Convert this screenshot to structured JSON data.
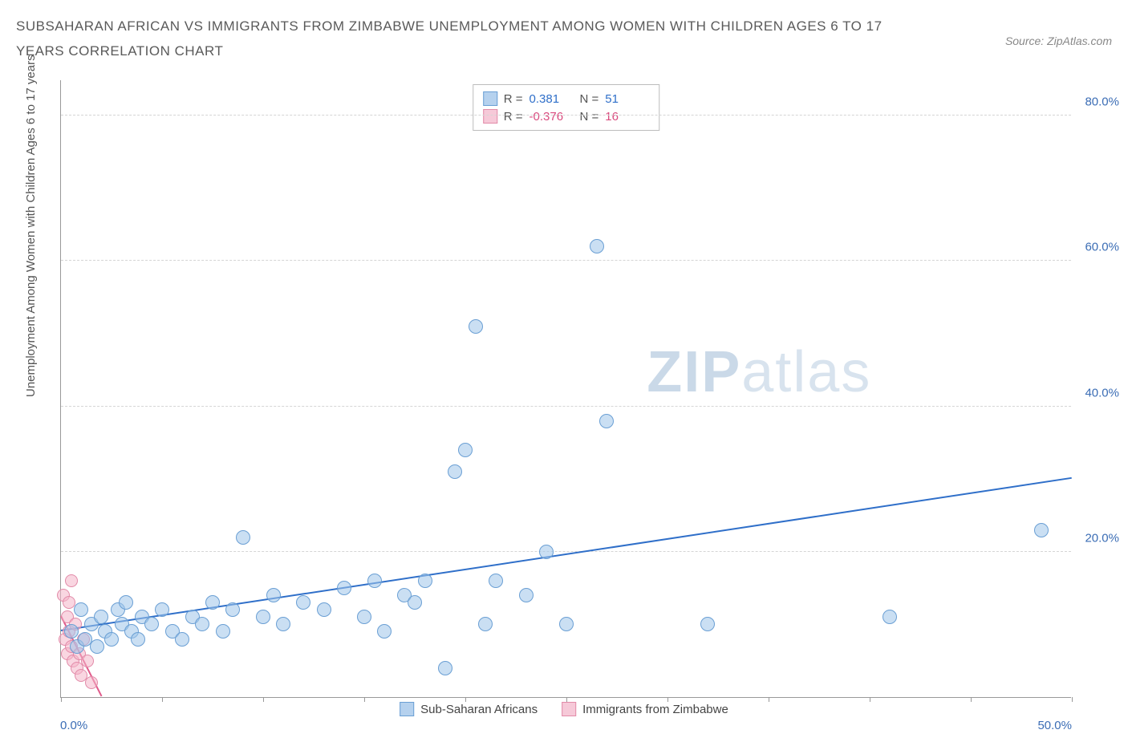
{
  "header": {
    "title": "SUBSAHARAN AFRICAN VS IMMIGRANTS FROM ZIMBABWE UNEMPLOYMENT AMONG WOMEN WITH CHILDREN AGES 6 TO 17 YEARS CORRELATION CHART",
    "source": "Source: ZipAtlas.com"
  },
  "chart": {
    "type": "scatter",
    "y_axis_label": "Unemployment Among Women with Children Ages 6 to 17 years",
    "x_range": [
      0,
      50
    ],
    "y_range": [
      0,
      85
    ],
    "x_ticks_percent": [
      0,
      5,
      10,
      15,
      20,
      25,
      30,
      35,
      40,
      45,
      50
    ],
    "x_tick_labels": {
      "left": "0.0%",
      "right": "50.0%"
    },
    "y_gridlines": [
      20,
      40,
      60,
      80
    ],
    "y_tick_labels": [
      "20.0%",
      "40.0%",
      "60.0%",
      "80.0%"
    ],
    "background_color": "#ffffff",
    "grid_color": "#d5d5d5",
    "axis_color": "#999999",
    "watermark": {
      "bold": "ZIP",
      "light": "atlas",
      "color_bold": "#cad9e8",
      "color_light": "#d8e3ee"
    },
    "series": {
      "blue": {
        "label": "Sub-Saharan Africans",
        "color_fill": "#b5d1ee",
        "color_stroke": "#6a9fd4",
        "trend_color": "#2f6fc9",
        "R": "0.381",
        "N": "51",
        "trend": {
          "x1": 0,
          "y1": 9,
          "x2": 50,
          "y2": 30
        },
        "points": [
          [
            0.5,
            9
          ],
          [
            0.8,
            7
          ],
          [
            1.0,
            12
          ],
          [
            1.2,
            8
          ],
          [
            1.5,
            10
          ],
          [
            1.8,
            7
          ],
          [
            2.0,
            11
          ],
          [
            2.2,
            9
          ],
          [
            2.5,
            8
          ],
          [
            2.8,
            12
          ],
          [
            3.0,
            10
          ],
          [
            3.2,
            13
          ],
          [
            3.5,
            9
          ],
          [
            3.8,
            8
          ],
          [
            4.0,
            11
          ],
          [
            4.5,
            10
          ],
          [
            5.0,
            12
          ],
          [
            5.5,
            9
          ],
          [
            6.0,
            8
          ],
          [
            6.5,
            11
          ],
          [
            7.0,
            10
          ],
          [
            7.5,
            13
          ],
          [
            8.0,
            9
          ],
          [
            8.5,
            12
          ],
          [
            9.0,
            22
          ],
          [
            10.0,
            11
          ],
          [
            10.5,
            14
          ],
          [
            11.0,
            10
          ],
          [
            12.0,
            13
          ],
          [
            13.0,
            12
          ],
          [
            14.0,
            15
          ],
          [
            15.0,
            11
          ],
          [
            15.5,
            16
          ],
          [
            16.0,
            9
          ],
          [
            17.0,
            14
          ],
          [
            17.5,
            13
          ],
          [
            18.0,
            16
          ],
          [
            19.0,
            4
          ],
          [
            19.5,
            31
          ],
          [
            20.0,
            34
          ],
          [
            20.5,
            51
          ],
          [
            21.0,
            10
          ],
          [
            21.5,
            16
          ],
          [
            23.0,
            14
          ],
          [
            24.0,
            20
          ],
          [
            25.0,
            10
          ],
          [
            26.5,
            62
          ],
          [
            27.0,
            38
          ],
          [
            32.0,
            10
          ],
          [
            41.0,
            11
          ],
          [
            48.5,
            23
          ]
        ]
      },
      "pink": {
        "label": "Immigrants from Zimbabwe",
        "color_fill": "#f6c9d8",
        "color_stroke": "#e28aa8",
        "trend_color": "#e05a8a",
        "R": "-0.376",
        "N": "16",
        "trend": {
          "x1": 0,
          "y1": 11,
          "x2": 2,
          "y2": 0
        },
        "points": [
          [
            0.1,
            14
          ],
          [
            0.2,
            8
          ],
          [
            0.3,
            11
          ],
          [
            0.3,
            6
          ],
          [
            0.4,
            13
          ],
          [
            0.4,
            9
          ],
          [
            0.5,
            16
          ],
          [
            0.5,
            7
          ],
          [
            0.6,
            5
          ],
          [
            0.7,
            10
          ],
          [
            0.8,
            4
          ],
          [
            0.9,
            6
          ],
          [
            1.0,
            3
          ],
          [
            1.1,
            8
          ],
          [
            1.3,
            5
          ],
          [
            1.5,
            2
          ]
        ]
      }
    },
    "stat_legend_labels": {
      "R": "R =",
      "N": "N ="
    },
    "bottom_legend": [
      {
        "swatch": "blue",
        "label": "Sub-Saharan Africans"
      },
      {
        "swatch": "pink",
        "label": "Immigrants from Zimbabwe"
      }
    ]
  }
}
